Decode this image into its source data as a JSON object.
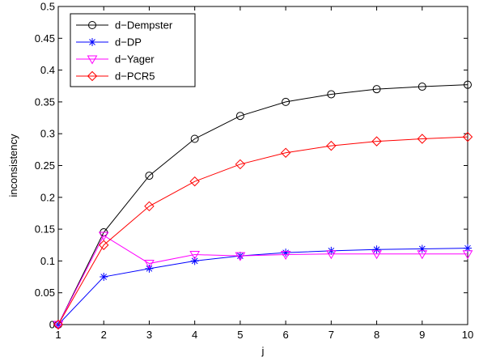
{
  "chart_data": {
    "type": "line",
    "title": "",
    "xlabel": "j",
    "ylabel": "inconsistency",
    "xlim": [
      1,
      10
    ],
    "ylim": [
      0,
      0.5
    ],
    "x": [
      1,
      2,
      3,
      4,
      5,
      6,
      7,
      8,
      9,
      10
    ],
    "xticks": [
      1,
      2,
      3,
      4,
      5,
      6,
      7,
      8,
      9,
      10
    ],
    "yticks": [
      0,
      0.05,
      0.1,
      0.15,
      0.2,
      0.25,
      0.3,
      0.35,
      0.4,
      0.45,
      0.5
    ],
    "x_tick_labels": [
      "1",
      "2",
      "3",
      "4",
      "5",
      "6",
      "7",
      "8",
      "9",
      "10"
    ],
    "y_tick_labels": [
      "0",
      "0.05",
      "0.1",
      "0.15",
      "0.2",
      "0.25",
      "0.3",
      "0.35",
      "0.4",
      "0.45",
      "0.5"
    ],
    "grid": false,
    "legend_position": "top-left",
    "series": [
      {
        "name": "d−Dempster",
        "color": "#000000",
        "marker": "circle",
        "values": [
          0,
          0.145,
          0.234,
          0.292,
          0.328,
          0.35,
          0.362,
          0.37,
          0.374,
          0.377
        ]
      },
      {
        "name": "d−DP",
        "color": "#0000ff",
        "marker": "asterisk",
        "values": [
          0,
          0.075,
          0.088,
          0.1,
          0.108,
          0.113,
          0.116,
          0.118,
          0.119,
          0.12
        ]
      },
      {
        "name": "d−Yager",
        "color": "#ff00ff",
        "marker": "triangle-down",
        "values": [
          0,
          0.14,
          0.096,
          0.11,
          0.108,
          0.11,
          0.111,
          0.111,
          0.111,
          0.111
        ]
      },
      {
        "name": "d−PCR5",
        "color": "#ff0000",
        "marker": "diamond",
        "values": [
          0,
          0.125,
          0.186,
          0.225,
          0.252,
          0.27,
          0.281,
          0.288,
          0.292,
          0.295
        ]
      }
    ]
  }
}
